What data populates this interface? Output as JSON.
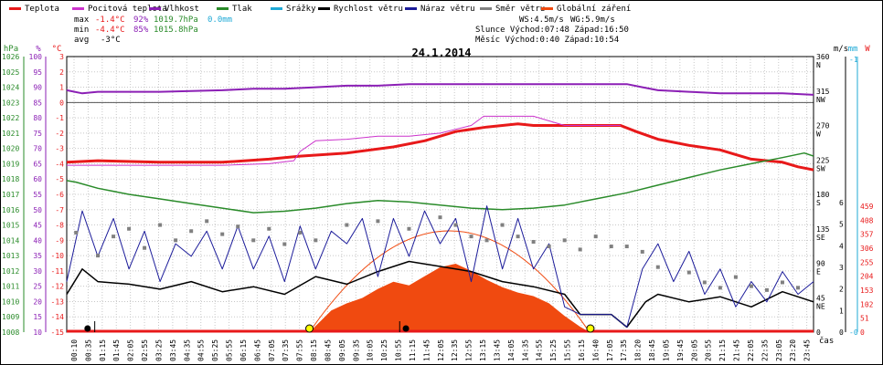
{
  "chart_data": {
    "type": "line",
    "title": "24.1.2014",
    "legend": [
      {
        "label": "Teplota",
        "color": "#e8191a"
      },
      {
        "label": "Pocitová teplota",
        "color": "#cc33cc"
      },
      {
        "label": "Vlhkost",
        "color": "#8b1fb5"
      },
      {
        "label": "Tlak",
        "color": "#2a8b2a"
      },
      {
        "label": "Srážky",
        "color": "#1fa9d6"
      },
      {
        "label": "Rychlost větru",
        "color": "#000000"
      },
      {
        "label": "Náraz větru",
        "color": "#1c1c9a"
      },
      {
        "label": "Směr větru",
        "color": "#808080"
      },
      {
        "label": "Globální záření",
        "color": "#f04a10"
      }
    ],
    "stats": {
      "max_label": "max",
      "max_temp": "-1.4°C",
      "max_hum": "92%",
      "max_press": "1019.7hPa",
      "max_rain": "0.0mm",
      "min_label": "min",
      "min_temp": "-4.4°C",
      "min_hum": "85%",
      "min_press": "1015.8hPa",
      "avg_label": "avg",
      "avg_temp": "-3°C",
      "ws": "WS:4.5m/s",
      "wg": "WG:5.9m/s",
      "sun_line": "Slunce Východ:07:48   Západ:16:50",
      "moon_line": "Měsíc  Východ:0:40    Západ:10:54"
    },
    "axes": {
      "hpa": {
        "unit": "hPa",
        "ticks": [
          "1026",
          "1025",
          "1024",
          "1023",
          "1022",
          "1021",
          "1020",
          "1019",
          "1018",
          "1017",
          "1016",
          "1015",
          "1014",
          "1013",
          "1012",
          "1011",
          "1010",
          "1009",
          "1008"
        ],
        "color": "#2a8b2a"
      },
      "pct": {
        "unit": "%",
        "ticks": [
          "100",
          "95",
          "90",
          "85",
          "80",
          "75",
          "70",
          "65",
          "60",
          "55",
          "50",
          "45",
          "40",
          "35",
          "30",
          "25",
          "20",
          "15",
          "10"
        ],
        "color": "#8b1fb5"
      },
      "temp": {
        "unit": "°C",
        "ticks": [
          "3",
          "2",
          "1",
          "0",
          "-1",
          "-2",
          "-3",
          "-4",
          "-5",
          "-6",
          "-7",
          "-8",
          "-9",
          "-10",
          "-11",
          "-12",
          "-13",
          "-14",
          "-15"
        ],
        "color": "#e8191a"
      },
      "dir": {
        "unit": "m/s",
        "labels": [
          [
            "360",
            "N"
          ],
          [
            "315",
            "NW"
          ],
          [
            "270",
            "W"
          ],
          [
            "225",
            "SW"
          ],
          [
            "180",
            "S"
          ],
          [
            "135",
            "SE"
          ],
          [
            "90",
            "E"
          ],
          [
            "45",
            "NE"
          ],
          [
            "0",
            ""
          ]
        ]
      },
      "mm": {
        "unit": "mm",
        "ticks": [
          "-1",
          "-0"
        ],
        "color": "#1fa9d6"
      },
      "ms": {
        "ticks": [
          "6",
          "5",
          "4",
          "3",
          "2",
          "1",
          "0"
        ]
      },
      "wm2": {
        "unit": "W",
        "ticks": [
          "459",
          "408",
          "357",
          "306",
          "255",
          "204",
          "153",
          "102",
          "51",
          "0"
        ],
        "color": "#e8191a"
      },
      "time_label": "čas",
      "x_ticks": [
        "00:10",
        "00:35",
        "01:15",
        "01:45",
        "02:05",
        "02:55",
        "03:25",
        "03:45",
        "04:35",
        "04:55",
        "05:25",
        "05:55",
        "06:15",
        "06:45",
        "07:05",
        "07:35",
        "07:55",
        "08:15",
        "08:45",
        "09:05",
        "09:35",
        "10:05",
        "10:25",
        "10:55",
        "11:15",
        "11:45",
        "12:05",
        "12:35",
        "12:55",
        "13:15",
        "13:45",
        "14:05",
        "14:35",
        "14:55",
        "15:25",
        "15:55",
        "16:15",
        "16:40",
        "17:05",
        "17:35",
        "18:20",
        "18:45",
        "19:05",
        "19:45",
        "20:05",
        "20:55",
        "21:15",
        "21:45",
        "22:05",
        "22:35",
        "23:05",
        "23:20",
        "23:45"
      ]
    },
    "x_range_hours": [
      0,
      24
    ],
    "series": [
      {
        "name": "Teplota",
        "unit": "°C",
        "points": [
          [
            0.0,
            -3.9
          ],
          [
            1.0,
            -3.8
          ],
          [
            3.0,
            -3.9
          ],
          [
            5.0,
            -3.9
          ],
          [
            6.5,
            -3.7
          ],
          [
            7.5,
            -3.5
          ],
          [
            9.0,
            -3.3
          ],
          [
            10.5,
            -2.9
          ],
          [
            11.5,
            -2.5
          ],
          [
            12.5,
            -1.9
          ],
          [
            13.5,
            -1.6
          ],
          [
            14.5,
            -1.4
          ],
          [
            15.0,
            -1.5
          ],
          [
            16.0,
            -1.5
          ],
          [
            17.0,
            -1.5
          ],
          [
            17.8,
            -1.5
          ],
          [
            18.3,
            -1.9
          ],
          [
            19.0,
            -2.4
          ],
          [
            20.0,
            -2.8
          ],
          [
            21.0,
            -3.1
          ],
          [
            21.5,
            -3.4
          ],
          [
            22.0,
            -3.7
          ],
          [
            22.5,
            -3.8
          ],
          [
            23.0,
            -3.9
          ],
          [
            23.5,
            -4.2
          ],
          [
            24.0,
            -4.4
          ]
        ]
      },
      {
        "name": "Pocitová teplota",
        "unit": "°C",
        "points": [
          [
            0.0,
            -4.1
          ],
          [
            5.0,
            -4.1
          ],
          [
            6.5,
            -4.0
          ],
          [
            7.3,
            -3.8
          ],
          [
            7.5,
            -3.2
          ],
          [
            8.0,
            -2.5
          ],
          [
            9.0,
            -2.4
          ],
          [
            10.0,
            -2.2
          ],
          [
            11.0,
            -2.2
          ],
          [
            12.0,
            -2.0
          ],
          [
            13.0,
            -1.5
          ],
          [
            13.4,
            -0.9
          ],
          [
            15.0,
            -0.9
          ],
          [
            16.0,
            -1.5
          ],
          [
            17.8,
            -1.5
          ]
        ]
      },
      {
        "name": "Vlhkost",
        "unit": "%",
        "points": [
          [
            0.0,
            89
          ],
          [
            0.5,
            88
          ],
          [
            1.0,
            88.5
          ],
          [
            3.0,
            88.5
          ],
          [
            5.0,
            89
          ],
          [
            6.0,
            89.5
          ],
          [
            7.0,
            89.5
          ],
          [
            8.0,
            90
          ],
          [
            9.0,
            90.5
          ],
          [
            10.0,
            90.5
          ],
          [
            11.0,
            91
          ],
          [
            12.0,
            91
          ],
          [
            14.0,
            91
          ],
          [
            16.0,
            91
          ],
          [
            18.0,
            91
          ],
          [
            18.5,
            90
          ],
          [
            19.0,
            89
          ],
          [
            20.0,
            88.5
          ],
          [
            21.0,
            88
          ],
          [
            22.0,
            88
          ],
          [
            23.0,
            88
          ],
          [
            24.0,
            87.5
          ]
        ]
      },
      {
        "name": "Tlak",
        "unit": "hPa",
        "points": [
          [
            0.0,
            1017.9
          ],
          [
            0.3,
            1017.8
          ],
          [
            1.0,
            1017.4
          ],
          [
            2.0,
            1017.0
          ],
          [
            3.0,
            1016.7
          ],
          [
            4.0,
            1016.4
          ],
          [
            5.0,
            1016.1
          ],
          [
            6.0,
            1015.8
          ],
          [
            7.0,
            1015.9
          ],
          [
            8.0,
            1016.1
          ],
          [
            9.0,
            1016.4
          ],
          [
            10.0,
            1016.6
          ],
          [
            11.0,
            1016.5
          ],
          [
            12.0,
            1016.3
          ],
          [
            13.0,
            1016.1
          ],
          [
            14.0,
            1016.0
          ],
          [
            15.0,
            1016.1
          ],
          [
            16.0,
            1016.3
          ],
          [
            17.0,
            1016.7
          ],
          [
            18.0,
            1017.1
          ],
          [
            19.0,
            1017.6
          ],
          [
            20.0,
            1018.1
          ],
          [
            21.0,
            1018.6
          ],
          [
            22.0,
            1019.0
          ],
          [
            23.0,
            1019.4
          ],
          [
            23.7,
            1019.7
          ],
          [
            24.0,
            1019.5
          ]
        ]
      },
      {
        "name": "Srážky",
        "unit": "mm",
        "points": [
          [
            0.0,
            0
          ],
          [
            24.0,
            0
          ]
        ]
      },
      {
        "name": "Rychlost větru",
        "unit": "m/s",
        "points": [
          [
            0.0,
            1.5
          ],
          [
            0.5,
            2.5
          ],
          [
            1.0,
            2.0
          ],
          [
            2.0,
            1.9
          ],
          [
            3.0,
            1.7
          ],
          [
            4.0,
            2.0
          ],
          [
            5.0,
            1.6
          ],
          [
            6.0,
            1.8
          ],
          [
            7.0,
            1.5
          ],
          [
            8.0,
            2.2
          ],
          [
            9.0,
            1.9
          ],
          [
            10.0,
            2.4
          ],
          [
            11.0,
            2.8
          ],
          [
            12.0,
            2.6
          ],
          [
            13.0,
            2.4
          ],
          [
            14.0,
            2.0
          ],
          [
            15.0,
            1.8
          ],
          [
            16.0,
            1.5
          ],
          [
            16.5,
            0.7
          ],
          [
            17.0,
            0.7
          ],
          [
            17.5,
            0.7
          ],
          [
            18.0,
            0.2
          ],
          [
            18.6,
            1.2
          ],
          [
            19.0,
            1.5
          ],
          [
            20.0,
            1.2
          ],
          [
            21.0,
            1.4
          ],
          [
            22.0,
            1.0
          ],
          [
            23.0,
            1.6
          ],
          [
            24.0,
            1.2
          ]
        ]
      },
      {
        "name": "Náraz větru",
        "unit": "m/s",
        "points": [
          [
            0.0,
            2.0
          ],
          [
            0.5,
            4.8
          ],
          [
            1.0,
            3.0
          ],
          [
            1.5,
            4.5
          ],
          [
            2.0,
            2.5
          ],
          [
            2.5,
            4.0
          ],
          [
            3.0,
            2.0
          ],
          [
            3.5,
            3.5
          ],
          [
            4.0,
            3.0
          ],
          [
            4.5,
            4.0
          ],
          [
            5.0,
            2.5
          ],
          [
            5.5,
            4.2
          ],
          [
            6.0,
            2.5
          ],
          [
            6.5,
            3.8
          ],
          [
            7.0,
            2.0
          ],
          [
            7.5,
            4.2
          ],
          [
            8.0,
            2.5
          ],
          [
            8.5,
            4.0
          ],
          [
            9.0,
            3.5
          ],
          [
            9.5,
            4.5
          ],
          [
            10.0,
            2.2
          ],
          [
            10.5,
            4.5
          ],
          [
            11.0,
            3.0
          ],
          [
            11.5,
            4.8
          ],
          [
            12.0,
            3.5
          ],
          [
            12.5,
            4.5
          ],
          [
            13.0,
            2.0
          ],
          [
            13.5,
            5.0
          ],
          [
            14.0,
            2.5
          ],
          [
            14.5,
            4.5
          ],
          [
            15.0,
            2.5
          ],
          [
            15.5,
            3.5
          ],
          [
            16.0,
            1.0
          ],
          [
            16.5,
            0.7
          ],
          [
            17.0,
            0.7
          ],
          [
            17.5,
            0.7
          ],
          [
            18.0,
            0.2
          ],
          [
            18.5,
            2.5
          ],
          [
            19.0,
            3.5
          ],
          [
            19.5,
            2.0
          ],
          [
            20.0,
            3.2
          ],
          [
            20.5,
            1.5
          ],
          [
            21.0,
            2.5
          ],
          [
            21.5,
            1.0
          ],
          [
            22.0,
            2.0
          ],
          [
            22.5,
            1.2
          ],
          [
            23.0,
            2.4
          ],
          [
            23.5,
            1.5
          ],
          [
            24.0,
            2.0
          ]
        ]
      },
      {
        "name": "Směr větru",
        "unit": "°",
        "points": [
          [
            0.3,
            130
          ],
          [
            1.0,
            100
          ],
          [
            1.5,
            125
          ],
          [
            2.0,
            135
          ],
          [
            2.5,
            110
          ],
          [
            3.0,
            140
          ],
          [
            3.5,
            120
          ],
          [
            4.0,
            132
          ],
          [
            4.5,
            145
          ],
          [
            5.0,
            128
          ],
          [
            5.5,
            138
          ],
          [
            6.0,
            120
          ],
          [
            6.5,
            135
          ],
          [
            7.0,
            115
          ],
          [
            7.5,
            130
          ],
          [
            8.0,
            120
          ],
          [
            9.0,
            140
          ],
          [
            10.0,
            145
          ],
          [
            11.0,
            135
          ],
          [
            12.0,
            150
          ],
          [
            12.5,
            140
          ],
          [
            13.0,
            125
          ],
          [
            13.5,
            120
          ],
          [
            14.0,
            140
          ],
          [
            14.5,
            125
          ],
          [
            15.0,
            118
          ],
          [
            15.5,
            112
          ],
          [
            16.0,
            120
          ],
          [
            16.5,
            108
          ],
          [
            17.0,
            125
          ],
          [
            17.5,
            112
          ],
          [
            18.0,
            112
          ],
          [
            18.5,
            105
          ],
          [
            19.0,
            85
          ],
          [
            20.0,
            78
          ],
          [
            20.5,
            65
          ],
          [
            21.0,
            58
          ],
          [
            21.5,
            72
          ],
          [
            22.0,
            60
          ],
          [
            22.5,
            55
          ],
          [
            23.0,
            65
          ],
          [
            23.5,
            58
          ]
        ]
      },
      {
        "name": "Globální záření",
        "unit": "W/m²",
        "points": [
          [
            7.8,
            0
          ],
          [
            8.5,
            60
          ],
          [
            9.0,
            80
          ],
          [
            9.5,
            95
          ],
          [
            10.0,
            120
          ],
          [
            10.5,
            140
          ],
          [
            11.0,
            130
          ],
          [
            11.5,
            155
          ],
          [
            12.0,
            180
          ],
          [
            12.5,
            190
          ],
          [
            13.0,
            170
          ],
          [
            13.5,
            145
          ],
          [
            14.0,
            125
          ],
          [
            14.5,
            110
          ],
          [
            15.0,
            100
          ],
          [
            15.5,
            80
          ],
          [
            16.0,
            45
          ],
          [
            16.5,
            15
          ],
          [
            16.8,
            0
          ]
        ]
      }
    ],
    "markers": [
      "sunrise",
      "sunset",
      "moonrise",
      "moonset"
    ]
  }
}
